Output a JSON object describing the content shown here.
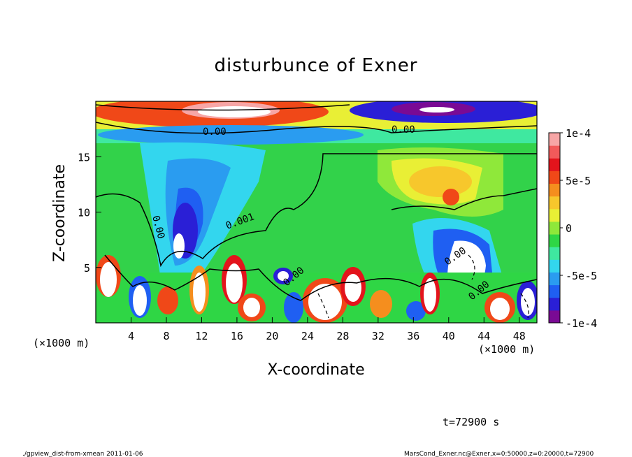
{
  "chart_data": {
    "type": "heatmap",
    "title": "disturbunce of Exner",
    "xlabel": "X-coordinate",
    "ylabel": "Z-coordinate",
    "x_unit_label": "(×1000 m)",
    "y_unit_label": "(×1000 m)",
    "xlim": [
      0,
      50
    ],
    "ylim": [
      0,
      20
    ],
    "x_ticks": [
      4,
      8,
      12,
      16,
      20,
      24,
      28,
      32,
      36,
      40,
      44,
      48
    ],
    "y_ticks": [
      5,
      10,
      15
    ],
    "colorbar": {
      "range": [
        -0.0001,
        0.0001
      ],
      "tick_values": [
        0.0001,
        5e-05,
        0,
        -5e-05,
        -0.0001
      ],
      "tick_labels": [
        "1e-4",
        "5e-5",
        "0",
        "-5e-5",
        "-1e-4"
      ],
      "colors": [
        "#7a0a94",
        "#2a1fd6",
        "#1f5ff2",
        "#2a9cf0",
        "#33d6ee",
        "#3fe8a0",
        "#2fd645",
        "#8fe83a",
        "#e9ef35",
        "#f7c72c",
        "#f58e1e",
        "#f04818",
        "#e3141c",
        "#f25a5a",
        "#f7a6a6"
      ]
    },
    "contour_labels": [
      "0.00",
      "0.00",
      "0.001",
      "0.00",
      "0.00",
      "0.00",
      "0.00"
    ],
    "annotations": {
      "time": "t=72900 s",
      "footer_left": "./gpview_dist-from-xmean  2011-01-06",
      "footer_right": "MarsCond_Exner.nc@Exner,x=0:50000,z=0:20000,t=72900"
    },
    "grid": false
  }
}
